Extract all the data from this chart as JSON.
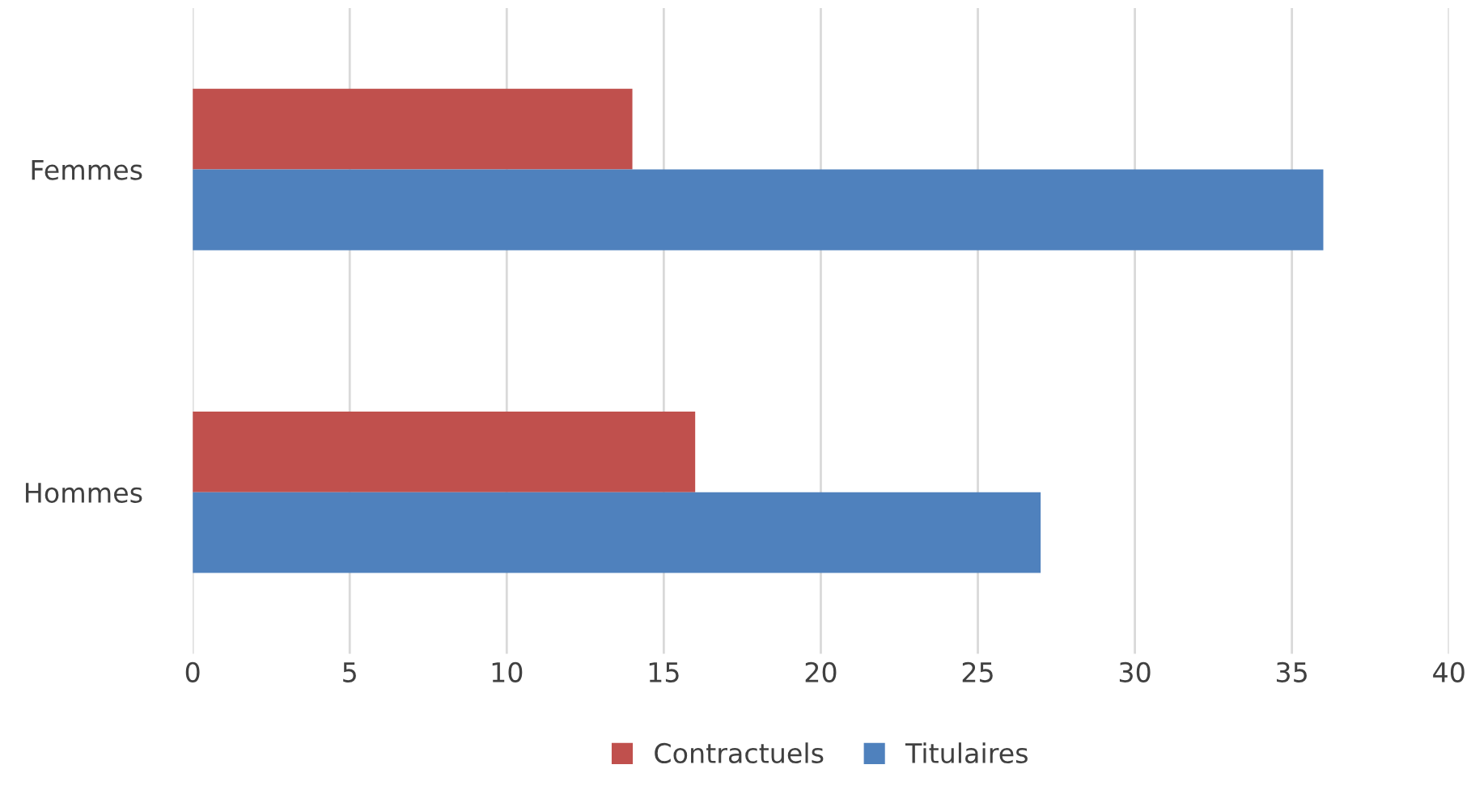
{
  "chart_data": {
    "type": "bar",
    "orientation": "horizontal",
    "categories": [
      "Femmes",
      "Hommes"
    ],
    "series": [
      {
        "name": "Contractuels",
        "color": "#c0504d",
        "values": [
          14,
          16
        ]
      },
      {
        "name": "Titulaires",
        "color": "#4f81bd",
        "values": [
          36,
          27
        ]
      }
    ],
    "xlim": [
      0,
      40
    ],
    "xticks": [
      0,
      5,
      10,
      15,
      20,
      25,
      30,
      35,
      40
    ],
    "grid": "x",
    "legend": "bottom"
  }
}
